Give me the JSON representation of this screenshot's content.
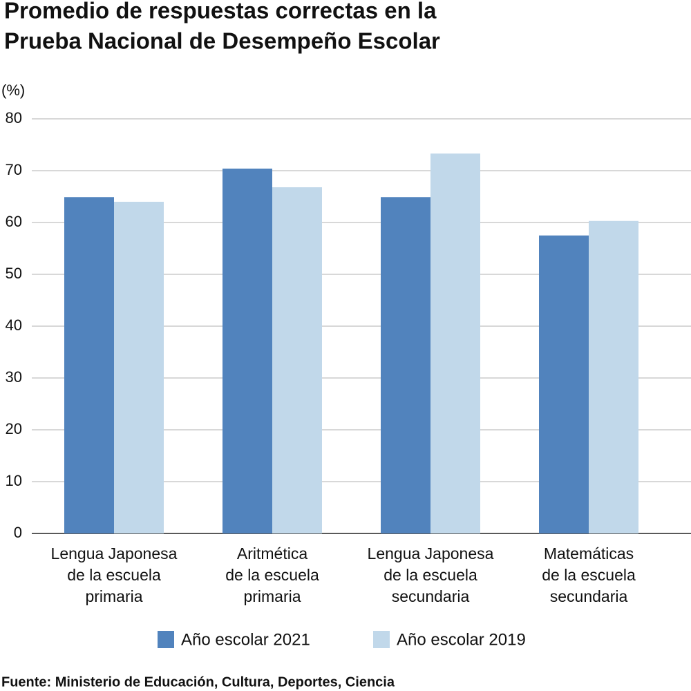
{
  "chart_data": {
    "type": "bar",
    "title": [
      "Promedio de respuestas correctas en la",
      "Prueba Nacional de Desempeño Escolar"
    ],
    "y_label": "(%)",
    "categories": [
      [
        "Lengua Japonesa",
        "de la escuela",
        "primaria"
      ],
      [
        "Aritmética",
        "de la escuela",
        "primaria"
      ],
      [
        "Lengua Japonesa",
        "de la escuela",
        "secundaria"
      ],
      [
        "Matemáticas",
        "de la escuela",
        "secundaria"
      ]
    ],
    "series": [
      {
        "name": "Año escolar 2021",
        "color": "#5183bd",
        "values": [
          64.9,
          70.4,
          64.9,
          57.5
        ]
      },
      {
        "name": "Año escolar 2019",
        "color": "#c1d8ea",
        "values": [
          64.0,
          66.8,
          73.3,
          60.3
        ]
      }
    ],
    "ylim": [
      0,
      80
    ],
    "yticks": [
      0,
      10,
      20,
      30,
      40,
      50,
      60,
      70,
      80
    ],
    "grid": true,
    "source": "Fuente: Ministerio de Educación, Cultura, Deportes, Ciencia"
  }
}
